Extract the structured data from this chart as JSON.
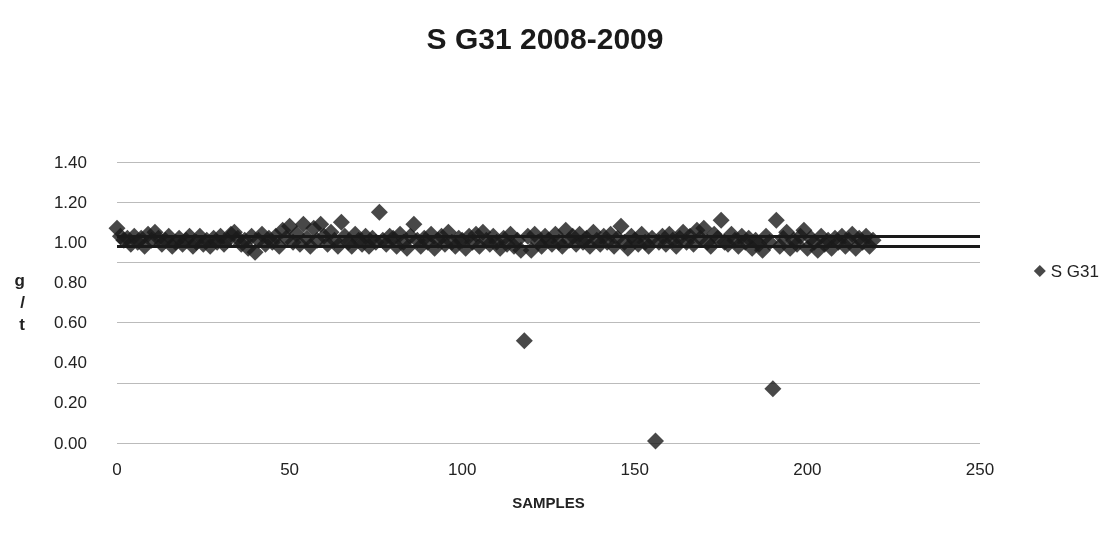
{
  "chart_data": {
    "type": "scatter",
    "title": "S G31 2008-2009",
    "xlabel": "SAMPLES",
    "ylabel": "g/t",
    "x": [
      0,
      1,
      2,
      3,
      4,
      5,
      6,
      7,
      8,
      9,
      10,
      11,
      12,
      13,
      14,
      15,
      16,
      17,
      18,
      19,
      20,
      21,
      22,
      23,
      24,
      25,
      26,
      27,
      28,
      29,
      30,
      31,
      32,
      33,
      34,
      35,
      36,
      37,
      38,
      39,
      40,
      41,
      42,
      43,
      44,
      45,
      46,
      47,
      48,
      49,
      50,
      51,
      52,
      53,
      54,
      55,
      56,
      57,
      58,
      59,
      60,
      61,
      62,
      63,
      64,
      65,
      66,
      67,
      68,
      69,
      70,
      71,
      72,
      73,
      74,
      75,
      76,
      77,
      78,
      79,
      80,
      81,
      82,
      83,
      84,
      85,
      86,
      87,
      88,
      89,
      90,
      91,
      92,
      93,
      94,
      95,
      96,
      97,
      98,
      99,
      100,
      101,
      102,
      103,
      104,
      105,
      106,
      107,
      108,
      109,
      110,
      111,
      112,
      113,
      114,
      115,
      116,
      117,
      118,
      119,
      120,
      121,
      122,
      123,
      124,
      125,
      126,
      127,
      128,
      129,
      130,
      131,
      132,
      133,
      134,
      135,
      136,
      137,
      138,
      139,
      140,
      141,
      142,
      143,
      144,
      145,
      146,
      147,
      148,
      149,
      150,
      151,
      152,
      153,
      154,
      155,
      156,
      157,
      158,
      159,
      160,
      161,
      162,
      163,
      164,
      165,
      166,
      167,
      168,
      169,
      170,
      171,
      172,
      173,
      174,
      175,
      176,
      177,
      178,
      179,
      180,
      181,
      182,
      183,
      184,
      185,
      186,
      187,
      188,
      189,
      190,
      191,
      192,
      193,
      194,
      195,
      196,
      197,
      198,
      199,
      200,
      201,
      202,
      203,
      204,
      205,
      206,
      207,
      208,
      209,
      210,
      211,
      212,
      213,
      214,
      215,
      216,
      217,
      218,
      219
    ],
    "series": [
      {
        "name": "S G31",
        "color": "#1a1a1a",
        "values": [
          1.07,
          1.03,
          1.01,
          1.02,
          0.99,
          1.03,
          1.0,
          1.02,
          0.98,
          1.04,
          1.01,
          1.05,
          1.02,
          0.99,
          1.01,
          1.03,
          0.98,
          1.0,
          1.02,
          0.99,
          1.01,
          1.03,
          0.98,
          1.0,
          1.03,
          0.99,
          1.01,
          0.98,
          1.02,
          1.0,
          1.03,
          0.99,
          1.01,
          1.04,
          1.05,
          1.02,
          0.99,
          1.01,
          0.97,
          1.03,
          0.95,
          1.01,
          1.04,
          0.99,
          1.02,
          1.0,
          1.03,
          0.98,
          1.06,
          1.02,
          1.08,
          1.0,
          1.04,
          0.99,
          1.09,
          1.02,
          0.98,
          1.07,
          1.01,
          1.09,
          1.03,
          0.99,
          1.05,
          1.01,
          0.98,
          1.1,
          1.03,
          1.0,
          0.98,
          1.04,
          1.01,
          0.99,
          1.03,
          0.98,
          1.02,
          1.0,
          1.15,
          1.01,
          0.99,
          1.03,
          1.02,
          0.98,
          1.04,
          1.0,
          0.97,
          1.03,
          1.09,
          1.01,
          0.98,
          1.02,
          1.0,
          1.04,
          0.97,
          1.01,
          1.03,
          0.99,
          1.05,
          1.0,
          0.98,
          1.02,
          1.01,
          0.97,
          1.03,
          1.0,
          1.04,
          0.98,
          1.05,
          1.01,
          0.99,
          1.03,
          1.0,
          0.97,
          1.02,
          0.99,
          1.04,
          0.98,
          1.01,
          0.96,
          0.51,
          1.03,
          0.96,
          1.04,
          1.0,
          0.98,
          1.03,
          1.01,
          0.99,
          1.04,
          1.0,
          0.98,
          1.06,
          1.01,
          1.03,
          0.99,
          1.04,
          1.0,
          1.02,
          0.98,
          1.05,
          1.01,
          0.99,
          1.03,
          1.0,
          1.04,
          0.98,
          1.02,
          1.08,
          1.0,
          0.97,
          1.03,
          1.01,
          0.99,
          1.04,
          1.0,
          0.98,
          1.02,
          0.01,
          1.0,
          1.03,
          0.99,
          1.04,
          1.01,
          0.98,
          1.02,
          1.05,
          1.0,
          1.03,
          0.99,
          1.06,
          1.02,
          1.07,
          1.0,
          0.98,
          1.04,
          1.02,
          1.11,
          1.0,
          0.99,
          1.04,
          1.01,
          0.98,
          1.03,
          1.0,
          1.02,
          0.97,
          1.01,
          0.99,
          0.96,
          1.03,
          1.0,
          0.27,
          1.11,
          0.98,
          1.02,
          1.05,
          0.97,
          1.01,
          0.99,
          1.03,
          1.06,
          0.97,
          1.02,
          1.0,
          0.96,
          1.03,
          0.99,
          1.01,
          0.97,
          1.02,
          1.0,
          1.03,
          0.98,
          1.01,
          1.04,
          0.97,
          1.02,
          1.0,
          1.03,
          0.98,
          1.01
        ]
      }
    ],
    "xlim": [
      0,
      250
    ],
    "xticks": [
      0,
      50,
      100,
      150,
      200,
      250
    ],
    "ylim": [
      0,
      1.4
    ],
    "yticks": [
      {
        "value": 0,
        "label": "0.00"
      },
      {
        "value": 0.2,
        "label": "0.20"
      },
      {
        "value": 0.4,
        "label": "0.40"
      },
      {
        "value": 0.6,
        "label": "0.60"
      },
      {
        "value": 0.8,
        "label": "0.80"
      },
      {
        "value": 1.0,
        "label": "1.00"
      },
      {
        "value": 1.2,
        "label": "1.20"
      },
      {
        "value": 1.4,
        "label": "1.40"
      }
    ],
    "ref_lines": [
      {
        "axis": "y",
        "value": 1.03,
        "label": null,
        "color": "#1a1a1a"
      },
      {
        "axis": "y",
        "value": 0.98,
        "label": null,
        "color": "#1a1a1a"
      }
    ],
    "grid": "y",
    "legend": "right",
    "marker": "diamond"
  }
}
